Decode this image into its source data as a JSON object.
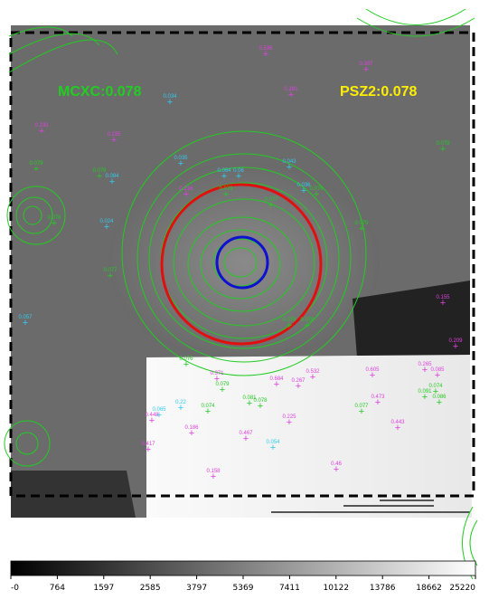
{
  "labels": {
    "catalog_left": "MCXC:0.078",
    "catalog_right": "PSZ2:0.078"
  },
  "colors": {
    "green": "#22cc22",
    "magenta": "#e040e0",
    "cyan": "#33c9f0",
    "yellow": "#ffee00",
    "red": "#e01010",
    "blue": "#1010d0"
  },
  "colorbar": {
    "ticks": [
      "-0",
      "764",
      "1597",
      "2585",
      "3797",
      "5369",
      "7411",
      "10122",
      "13786",
      "18662",
      "25220"
    ]
  },
  "sources": {
    "magenta": [
      "0.536",
      "0.387",
      "0.233",
      "0.235",
      "0.216",
      "0.281",
      "0.267",
      "0.371",
      "0.684",
      "0.605",
      "0.265",
      "0.473",
      "0.443",
      "0.467",
      "0.186",
      "0.225",
      "0.158",
      "0.46",
      "0.532",
      "0.209",
      "0.085",
      "0.417",
      "0.448",
      "0.155"
    ],
    "green": [
      "0.079",
      "0.078",
      "0.079",
      "0.077",
      "0.076",
      "0.079",
      "0.078",
      "0.077",
      "0.079",
      "0.079",
      "0.078",
      "0.076",
      "0.079",
      "0.081",
      "0.078",
      "0.077",
      "0.086",
      "0.074",
      "0.091",
      "0.074"
    ],
    "cyan": [
      "0.034",
      "0.084",
      "0.064",
      "0.035",
      "0.043",
      "0.024",
      "0.036",
      "0.06",
      "0.057",
      "0.054",
      "0.22",
      "0.065"
    ]
  }
}
